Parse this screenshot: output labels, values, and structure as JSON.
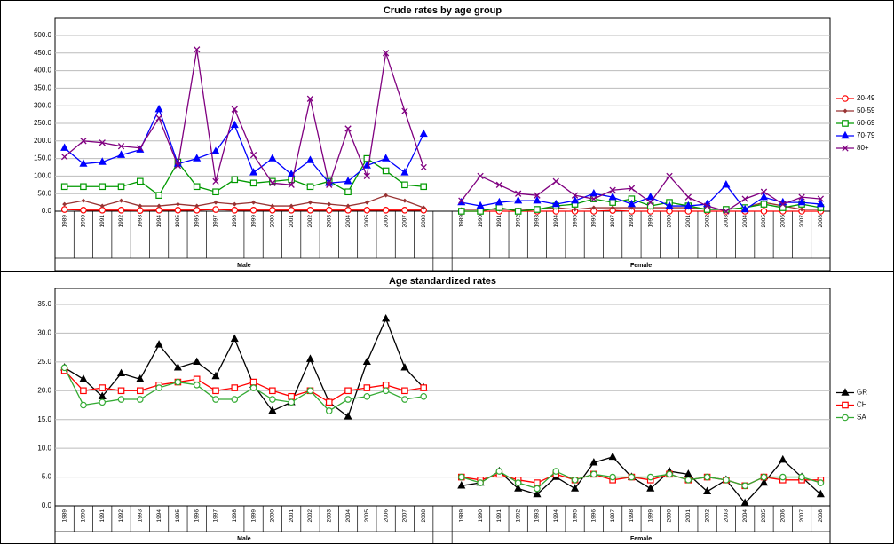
{
  "chart_data": [
    {
      "type": "line",
      "title": "Crude rates by age group",
      "categories": [
        "1989",
        "1990",
        "1991",
        "1992",
        "1993",
        "1994",
        "1995",
        "1996",
        "1997",
        "1998",
        "1999",
        "2000",
        "2001",
        "2002",
        "2003",
        "2004",
        "2005",
        "2006",
        "2007",
        "2008",
        null,
        "1989",
        "1990",
        "1991",
        "1992",
        "1993",
        "1994",
        "1995",
        "1996",
        "1997",
        "1998",
        "1999",
        "2000",
        "2001",
        "2002",
        "2003",
        "2004",
        "2005",
        "2006",
        "2007",
        "2008"
      ],
      "groups": [
        "Male",
        "Female"
      ],
      "ylim": [
        0,
        500
      ],
      "yticks": [
        {
          "value": 0,
          "label": "0.0"
        },
        {
          "value": 50,
          "label": "50.0"
        },
        {
          "value": 100,
          "label": "100.0"
        },
        {
          "value": 150,
          "label": "150.0"
        },
        {
          "value": 200,
          "label": "200.0"
        },
        {
          "value": 250,
          "label": "250.0"
        },
        {
          "value": 300,
          "label": "300.0"
        },
        {
          "value": 350,
          "label": "350.0"
        },
        {
          "value": 400,
          "label": "400.0"
        },
        {
          "value": 450,
          "label": "450.0"
        },
        {
          "value": 500,
          "label": "500.0"
        }
      ],
      "grid": true,
      "legend": "right",
      "series": [
        {
          "name": "20-49",
          "color": "#ff0000",
          "marker": "circle",
          "values": [
            5,
            3,
            3,
            3,
            2,
            3,
            3,
            3,
            5,
            3,
            3,
            3,
            3,
            3,
            3,
            3,
            3,
            3,
            3,
            3,
            null,
            0,
            0,
            0,
            0,
            0,
            0,
            0,
            0,
            2,
            0,
            0,
            0,
            0,
            0,
            0,
            0,
            0,
            0,
            0,
            0
          ]
        },
        {
          "name": "50-59",
          "color": "#993333",
          "marker": "diamond",
          "values": [
            20,
            30,
            15,
            30,
            15,
            15,
            20,
            15,
            25,
            20,
            25,
            15,
            15,
            25,
            20,
            15,
            25,
            45,
            30,
            10,
            null,
            5,
            5,
            5,
            5,
            5,
            10,
            5,
            10,
            10,
            10,
            10,
            10,
            10,
            5,
            5,
            10,
            25,
            15,
            5,
            5
          ]
        },
        {
          "name": "60-69",
          "color": "#009900",
          "marker": "square",
          "values": [
            70,
            70,
            70,
            70,
            85,
            45,
            140,
            70,
            55,
            90,
            80,
            85,
            90,
            70,
            85,
            55,
            150,
            115,
            75,
            70,
            null,
            0,
            0,
            10,
            0,
            5,
            15,
            20,
            35,
            25,
            35,
            15,
            25,
            15,
            5,
            5,
            10,
            20,
            10,
            20,
            10
          ]
        },
        {
          "name": "70-79",
          "color": "#0000ff",
          "marker": "triangle",
          "values": [
            180,
            135,
            140,
            160,
            175,
            290,
            135,
            150,
            170,
            245,
            110,
            150,
            105,
            145,
            80,
            85,
            130,
            150,
            110,
            220,
            null,
            25,
            15,
            25,
            30,
            30,
            20,
            30,
            50,
            40,
            20,
            40,
            15,
            15,
            20,
            75,
            5,
            40,
            25,
            25,
            20
          ]
        },
        {
          "name": "80+",
          "color": "#800080",
          "marker": "x",
          "values": [
            155,
            200,
            195,
            185,
            180,
            265,
            130,
            460,
            85,
            290,
            160,
            80,
            75,
            320,
            75,
            235,
            100,
            450,
            285,
            125,
            null,
            30,
            100,
            75,
            50,
            45,
            85,
            45,
            35,
            60,
            65,
            25,
            100,
            40,
            15,
            0,
            35,
            55,
            20,
            40,
            35
          ]
        }
      ]
    },
    {
      "type": "line",
      "title": "Age standardized rates",
      "categories": [
        "1989",
        "1990",
        "1991",
        "1992",
        "1993",
        "1994",
        "1995",
        "1996",
        "1997",
        "1998",
        "1999",
        "2000",
        "2001",
        "2002",
        "2003",
        "2004",
        "2005",
        "2006",
        "2007",
        "2008",
        null,
        "1989",
        "1990",
        "1991",
        "1992",
        "1993",
        "1994",
        "1995",
        "1996",
        "1997",
        "1998",
        "1999",
        "2000",
        "2001",
        "2002",
        "2003",
        "2004",
        "2005",
        "2006",
        "2007",
        "2008"
      ],
      "groups": [
        "Male",
        "Female"
      ],
      "ylim": [
        0,
        35
      ],
      "yticks": [
        {
          "value": 0,
          "label": "0.0"
        },
        {
          "value": 5,
          "label": "5.0"
        },
        {
          "value": 10,
          "label": "10.0"
        },
        {
          "value": 15,
          "label": "15.0"
        },
        {
          "value": 20,
          "label": "20.0"
        },
        {
          "value": 25,
          "label": "25.0"
        },
        {
          "value": 30,
          "label": "30.0"
        },
        {
          "value": 35,
          "label": "35.0"
        }
      ],
      "grid": true,
      "legend": "right",
      "series": [
        {
          "name": "GR",
          "color": "#000000",
          "marker": "triangle",
          "values": [
            24,
            22,
            19,
            23,
            22,
            28,
            24,
            25,
            22.5,
            29,
            21,
            16.5,
            18,
            25.5,
            18,
            15.5,
            25,
            32.5,
            24,
            20.5,
            null,
            3.5,
            4,
            6,
            3,
            2,
            5,
            3,
            7.5,
            8.5,
            5,
            3,
            6,
            5.5,
            2.5,
            4.5,
            0.5,
            4,
            8,
            5,
            2
          ]
        },
        {
          "name": "CH",
          "color": "#ff0000",
          "marker": "square",
          "values": [
            23.5,
            20,
            20.5,
            20,
            20,
            21,
            21.5,
            22,
            20,
            20.5,
            21.5,
            20,
            19,
            20,
            18,
            20,
            20.5,
            21,
            20,
            20.5,
            null,
            5,
            4.5,
            5.5,
            4.5,
            4,
            5.5,
            4.5,
            5.5,
            4.5,
            5,
            4.5,
            5.5,
            4.5,
            5,
            4.5,
            3.5,
            5,
            4.5,
            4.5,
            4.5
          ]
        },
        {
          "name": "SA",
          "color": "#33aa33",
          "marker": "circle",
          "values": [
            24,
            17.5,
            18,
            18.5,
            18.5,
            20.5,
            21.5,
            21,
            18.5,
            18.5,
            20.5,
            18.5,
            18,
            20,
            16.5,
            18.5,
            19,
            20,
            18.5,
            19,
            null,
            5,
            4,
            6,
            4,
            3,
            6,
            4.5,
            5.5,
            5,
            5,
            5,
            5.5,
            4.5,
            5,
            4.5,
            3.5,
            5,
            5,
            5,
            4
          ]
        }
      ]
    }
  ]
}
